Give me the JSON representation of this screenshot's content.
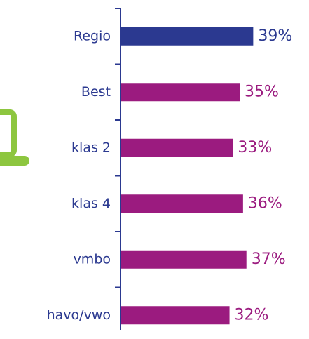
{
  "chart_data": {
    "type": "bar",
    "orientation": "horizontal",
    "categories": [
      "Regio",
      "Best",
      "klas 2",
      "klas 4",
      "vmbo",
      "havo/vwo"
    ],
    "values": [
      39,
      35,
      33,
      36,
      37,
      32
    ],
    "value_labels": [
      "39%",
      "35%",
      "33%",
      "36%",
      "37%",
      "32%"
    ],
    "colors": [
      "#2b3990",
      "#9b1b7f",
      "#9b1b7f",
      "#9b1b7f",
      "#9b1b7f",
      "#9b1b7f"
    ]
  }
}
